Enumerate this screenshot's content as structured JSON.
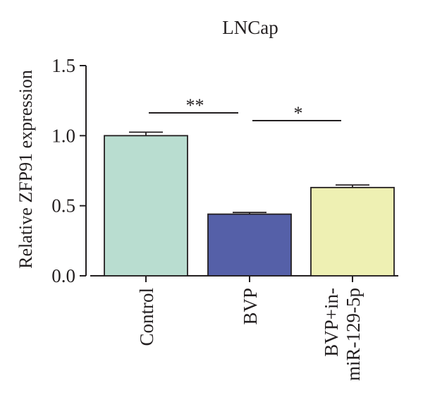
{
  "chart_data": {
    "type": "bar",
    "title": "LNCap",
    "xlabel": "",
    "ylabel": "Relative ZFP91 expression",
    "ylim": [
      0,
      1.5
    ],
    "yticks": [
      "0.0",
      "0.5",
      "1.0",
      "1.5"
    ],
    "yticks_values": [
      0,
      0.5,
      1.0,
      1.5
    ],
    "categories": [
      "Control",
      "BVP",
      "BVP+in-miR-129-5p"
    ],
    "category_label_lines": [
      [
        "Control"
      ],
      [
        "BVP"
      ],
      [
        "BVP+in-",
        "miR-129-5p"
      ]
    ],
    "values": [
      1.0,
      0.44,
      0.63
    ],
    "errors": [
      0.025,
      0.012,
      0.018
    ],
    "bar_colors": [
      "#b9ddd0",
      "#5560a8",
      "#eef0b3"
    ],
    "significance": [
      {
        "from": 0,
        "to": 1,
        "label": "**"
      },
      {
        "from": 1,
        "to": 2,
        "label": "*"
      }
    ],
    "grid": false,
    "legend": "none"
  }
}
